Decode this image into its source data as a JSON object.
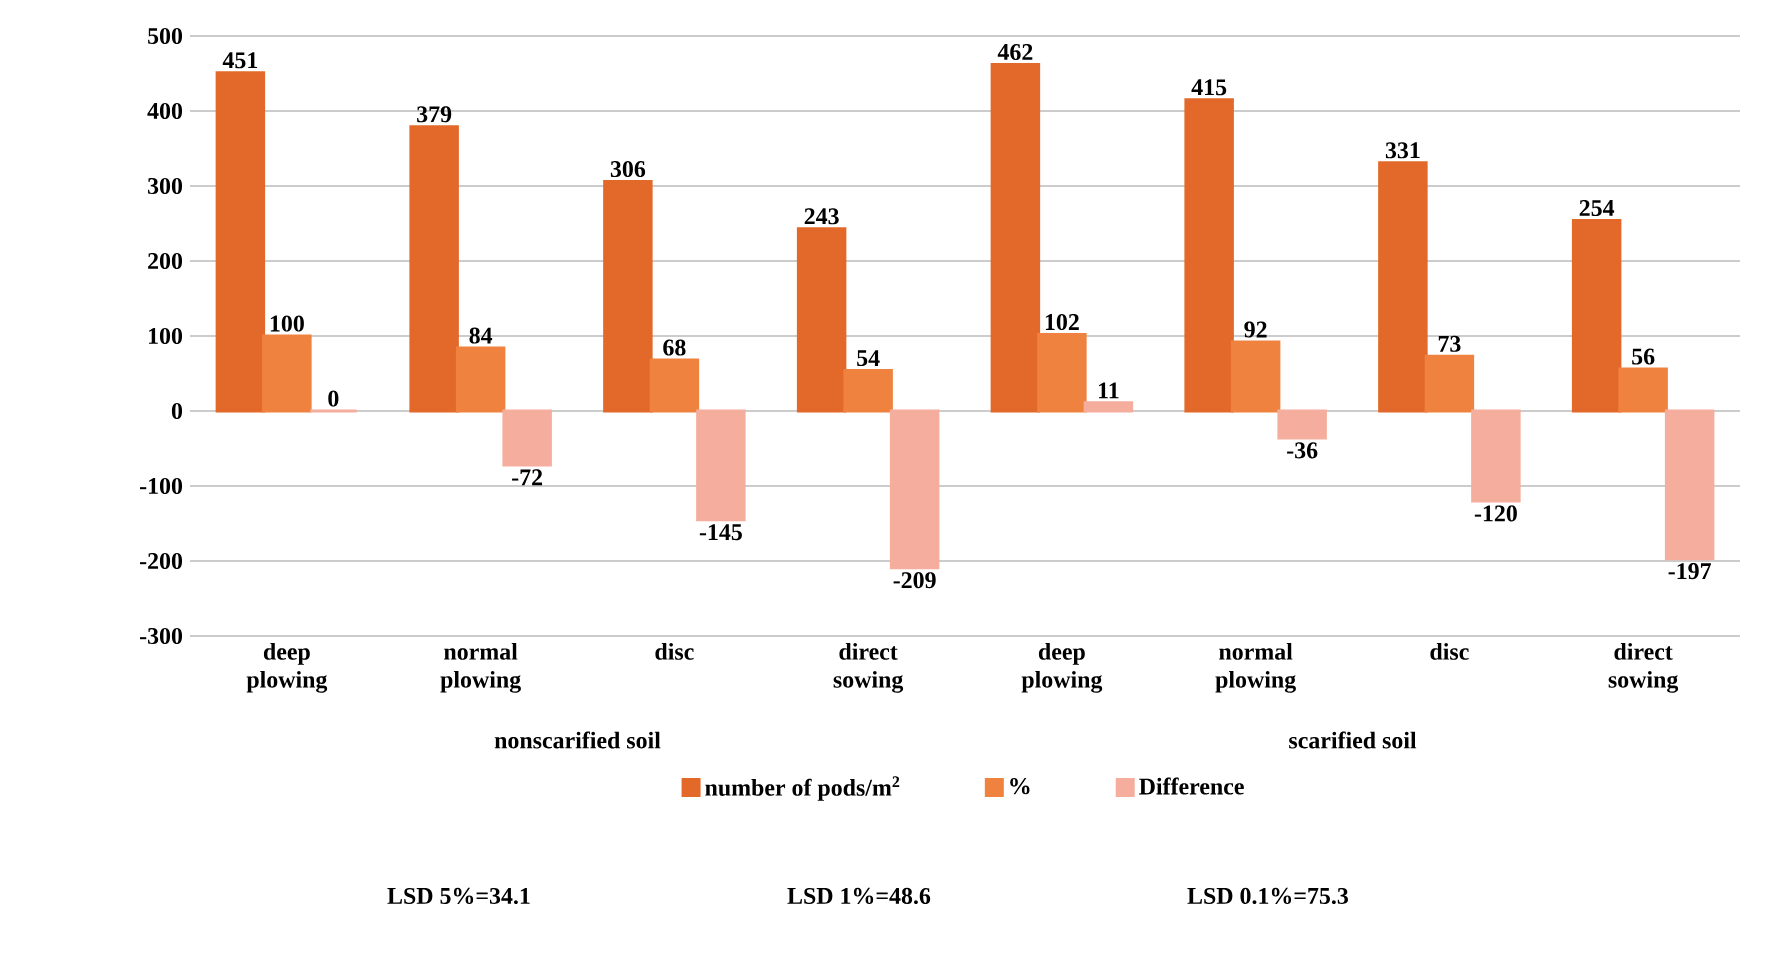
{
  "chart_data": {
    "type": "bar",
    "categories": [
      "deep plowing",
      "normal plowing",
      "disc",
      "direct sowing",
      "deep plowing",
      "normal plowing",
      "disc",
      "direct sowing"
    ],
    "series": [
      {
        "name": "number of pods/m$^{2}$",
        "color": "#e2692a",
        "values": [
          451,
          379,
          306,
          243,
          462,
          415,
          331,
          254
        ]
      },
      {
        "name": "%",
        "color": "#f0823f",
        "values": [
          100,
          84,
          68,
          54,
          102,
          92,
          73,
          56
        ]
      },
      {
        "name": "Difference",
        "color": "#f5ad9d",
        "values": [
          0,
          -72,
          -145,
          -209,
          11,
          -36,
          -120,
          -197
        ]
      }
    ],
    "ylim": [
      -300,
      500
    ],
    "yticks": [
      -300,
      -200,
      -100,
      0,
      100,
      200,
      300,
      400,
      500
    ],
    "grid": "y",
    "legend": "bottom",
    "data_labels": true,
    "annotations": [
      "nonscarified soil",
      "scarified soil",
      "LSD 5%=34.1",
      "LSD 1%=48.6",
      "LSD 0.1%=75.3"
    ]
  }
}
